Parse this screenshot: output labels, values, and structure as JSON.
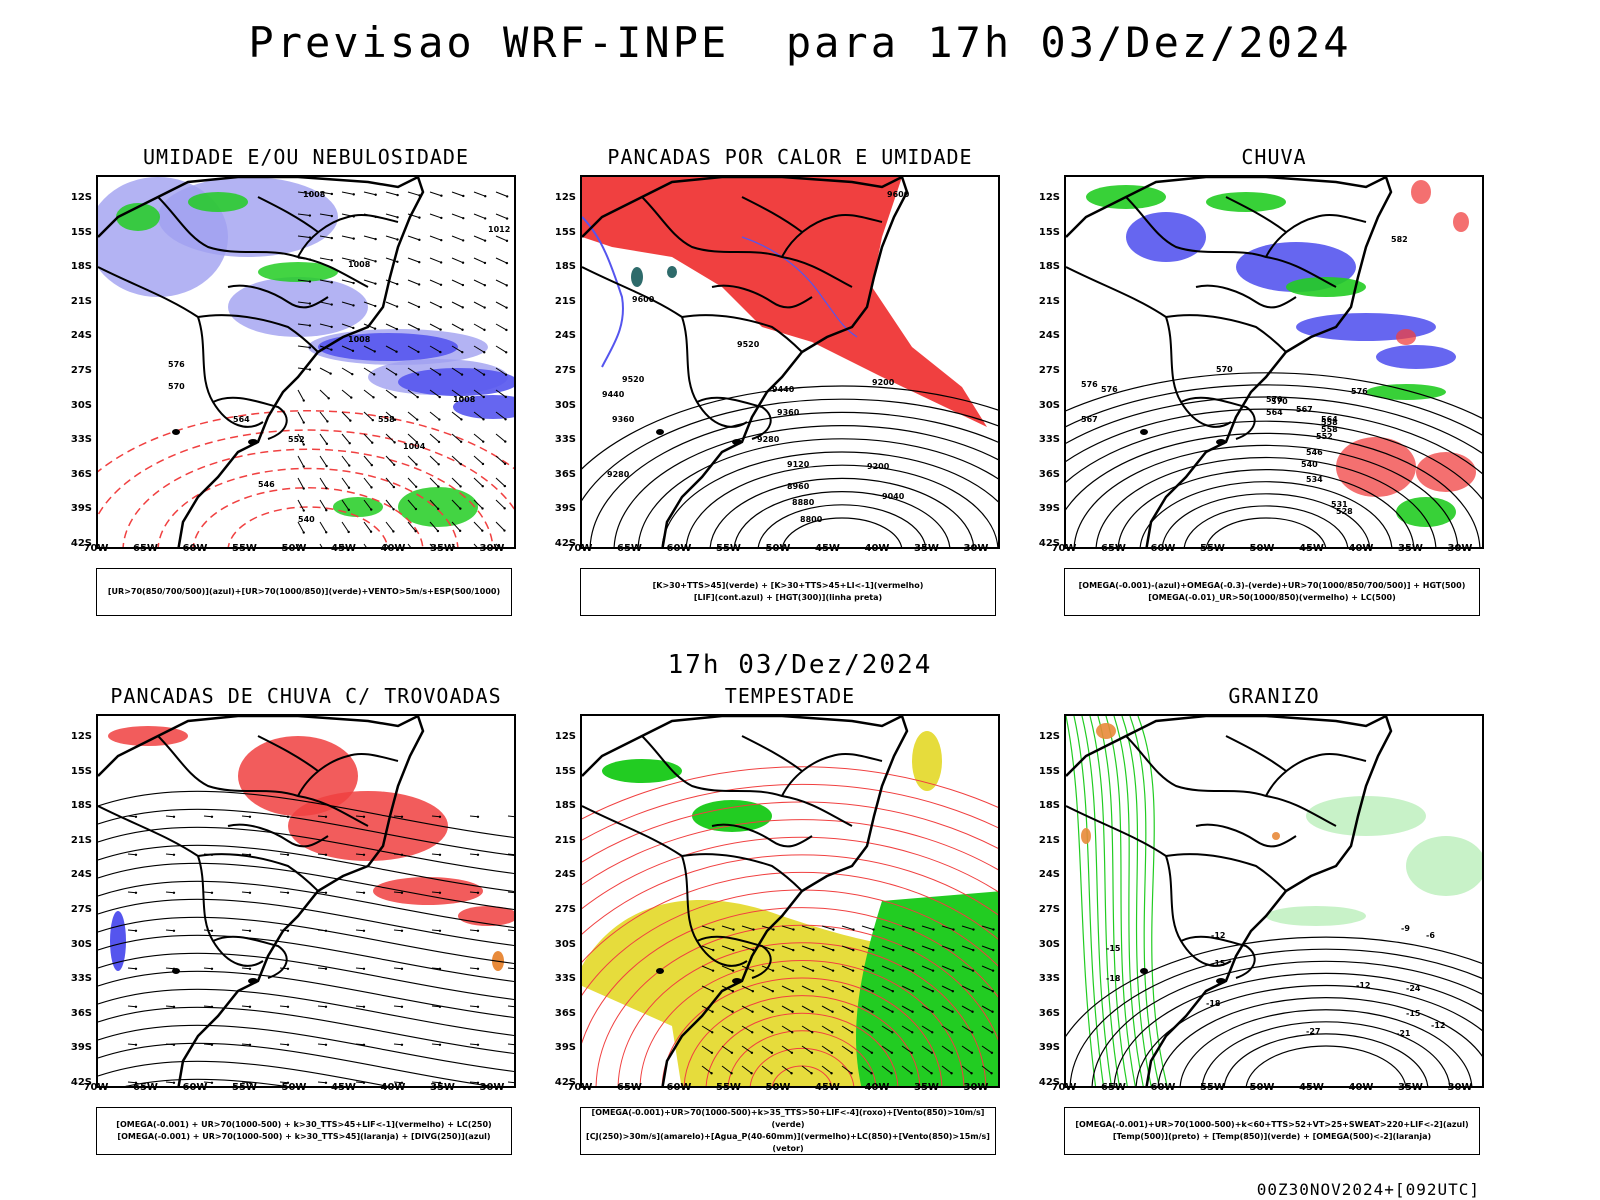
{
  "title": "Previsao WRF-INPE  para 17h 03/Dez/2024",
  "subtitle": "17h 03/Dez/2024",
  "footer": "00Z30NOV2024+[092UTC]",
  "lat_labels": [
    "12S",
    "15S",
    "18S",
    "21S",
    "24S",
    "27S",
    "30S",
    "33S",
    "36S",
    "39S",
    "42S"
  ],
  "lon_labels": [
    "70W",
    "65W",
    "60W",
    "55W",
    "50W",
    "45W",
    "40W",
    "35W",
    "30W"
  ],
  "colors": {
    "blue": "#5555ee",
    "lightblue": "#a0a0f0",
    "green": "#22cc22",
    "red": "#f04040",
    "yellow": "#e6dc3c",
    "orange": "#e88a3a",
    "teal": "#2e6b6b"
  },
  "panels": [
    {
      "title": "UMIDADE E/OU NEBULOSIDADE",
      "legend": [
        "[UR>70(850/700/500)](azul)+[UR>70(1000/850)](verde)+VENTO>5m/s+ESP(500/1000)"
      ]
    },
    {
      "title": "PANCADAS POR CALOR E UMIDADE",
      "legend": [
        "[K>30+TTS>45](verde) + [K>30+TTS>45+LI<-1](vermelho)",
        "[LIF](cont.azul) + [HGT(300)](linha preta)"
      ]
    },
    {
      "title": "CHUVA",
      "legend": [
        "[OMEGA(-0.001)-(azul)+OMEGA(-0.3)-(verde)+UR>70(1000/850/700/500)] + HGT(500)",
        "[OMEGA(-0.01)_UR>50(1000/850)(vermelho) + LC(500)"
      ]
    },
    {
      "title": "PANCADAS DE CHUVA C/ TROVOADAS",
      "legend": [
        "[OMEGA(-0.001) + UR>70(1000-500) + k>30_TTS>45+LIF<-1](vermelho) + LC(250)",
        "[OMEGA(-0.001) + UR>70(1000-500) + k>30_TTS>45](laranja) + [DIVG(250)](azul)"
      ]
    },
    {
      "title": "TEMPESTADE",
      "legend": [
        "[OMEGA(-0.001)+UR>70(1000-500)+k>35_TTS>50+LIF<-4](roxo)+[Vento(850)>10m/s](verde)",
        "[CJ(250)>30m/s](amarelo)+[Agua_P(40-60mm)](vermelho)+LC(850)+[Vento(850)>15m/s](vetor)"
      ]
    },
    {
      "title": "GRANIZO",
      "legend": [
        "[OMEGA(-0.001)+UR>70(1000-500)+k<60+TTS>52+VT>25+SWEAT>220+LIF<-2](azul)",
        "[Temp(500)](preto) + [Temp(850)](verde) + [OMEGA(500)<-2](laranja)"
      ]
    }
  ],
  "contour_labels": {
    "p1": [
      "1008",
      "1008",
      "1008",
      "1012",
      "1008",
      "1004",
      "576",
      "570",
      "564",
      "558",
      "552",
      "546",
      "540"
    ],
    "p2": [
      "9600",
      "9600",
      "9520",
      "9520",
      "9440",
      "9440",
      "9360",
      "9360",
      "9280",
      "9280",
      "9200",
      "9120",
      "9040",
      "8960",
      "8880",
      "8800",
      "9200"
    ],
    "p3": [
      "582",
      "576",
      "576",
      "570",
      "570",
      "567",
      "564",
      "558",
      "552",
      "546",
      "540",
      "534",
      "531",
      "528",
      "576",
      "570",
      "567",
      "564",
      "558"
    ],
    "p6": [
      "-12",
      "-15",
      "-15",
      "-18",
      "-18",
      "-21",
      "-24",
      "-27",
      "-12",
      "-9",
      "-6",
      "-12",
      "-15"
    ]
  }
}
